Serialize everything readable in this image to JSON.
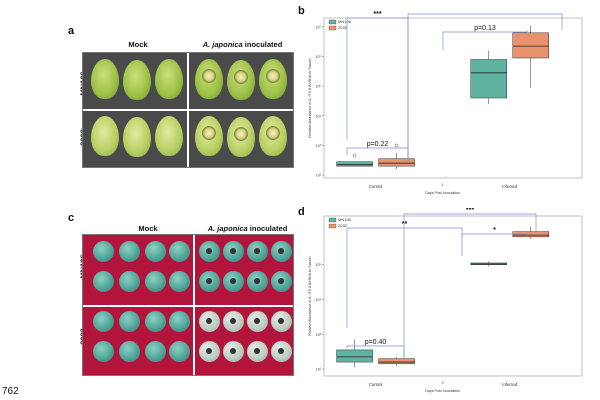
{
  "figure_id": "762",
  "panels": {
    "a": {
      "letter": "a",
      "col_mock": "Mock",
      "col_inoc_italic": "A. japonica",
      "col_inoc_rest": " inoculated",
      "row1": "MN106",
      "row2": "2032"
    },
    "c": {
      "letter": "c",
      "col_mock": "Mock",
      "col_inoc_italic": "A. japonica",
      "col_inoc_rest": " inoculated",
      "row1": "MN106",
      "row2": "2032"
    },
    "b": {
      "letter": "b"
    },
    "d": {
      "letter": "d"
    }
  },
  "chart_data": [
    {
      "panel": "b",
      "type": "box",
      "ylabel": "Relative Abundance of A. ITS 8 B/rRNA to Tubulin",
      "xlabel": "Days Post Inoculation",
      "categories": [
        "Control",
        "1",
        "Infected"
      ],
      "category_labels": [
        "Control",
        "Infected"
      ],
      "legend": [
        {
          "name": "MN106",
          "color": "#5fb3a0"
        },
        {
          "name": "2032",
          "color": "#e8926e"
        }
      ],
      "y_ticks": [
        "10⁷",
        "10⁶",
        "10⁵",
        "10⁴",
        "10³",
        "10²"
      ],
      "log_scale": true,
      "boxes": [
        {
          "group": "Control",
          "series": "MN106",
          "color": "#5fb3a0",
          "whisker_low": 2.3,
          "q1": 2.3,
          "median": 2.35,
          "q3": 2.45,
          "whisker_high": 2.45,
          "outliers": [
            2.65
          ]
        },
        {
          "group": "Control",
          "series": "2032",
          "color": "#e8926e",
          "whisker_low": 2.2,
          "q1": 2.3,
          "median": 2.4,
          "q3": 2.55,
          "whisker_high": 2.75,
          "outliers": [
            3.0
          ]
        },
        {
          "group": "Infected",
          "series": "MN106",
          "color": "#5fb3a0",
          "whisker_low": 4.4,
          "q1": 4.6,
          "median": 5.45,
          "q3": 5.9,
          "whisker_high": 6.2,
          "outliers": []
        },
        {
          "group": "Infected",
          "series": "2032",
          "color": "#e8926e",
          "whisker_low": 4.95,
          "q1": 5.95,
          "median": 6.35,
          "q3": 6.8,
          "whisker_high": 7.05,
          "outliers": []
        }
      ],
      "annotations": [
        "***",
        "***",
        "p=0.13",
        "p=0.22"
      ]
    },
    {
      "panel": "d",
      "type": "box",
      "ylabel": "Relative Abundance of A. ITS 8 B/rRNA to Tubulin",
      "xlabel": "Days Post Inoculation",
      "categories": [
        "Control",
        "2",
        "Infected"
      ],
      "category_labels": [
        "Control",
        "Infected"
      ],
      "legend": [
        {
          "name": "MN106",
          "color": "#5fb3a0"
        },
        {
          "name": "2032",
          "color": "#e8926e"
        }
      ],
      "y_ticks": [
        "10⁵",
        "10⁴",
        "10³",
        "10²"
      ],
      "log_scale": true,
      "boxes": [
        {
          "group": "Control",
          "series": "MN106",
          "color": "#5fb3a0",
          "whisker_low": 2.05,
          "q1": 2.2,
          "median": 2.35,
          "q3": 2.55,
          "whisker_high": 2.85,
          "outliers": []
        },
        {
          "group": "Control",
          "series": "2032",
          "color": "#e8926e",
          "whisker_low": 2.1,
          "q1": 2.15,
          "median": 2.2,
          "q3": 2.3,
          "whisker_high": 2.35,
          "outliers": []
        },
        {
          "group": "Infected",
          "series": "MN106",
          "color": "#5fb3a0",
          "whisker_low": 4.95,
          "q1": 5.0,
          "median": 5.02,
          "q3": 5.05,
          "whisker_high": 5.1,
          "outliers": []
        },
        {
          "group": "Infected",
          "series": "2032",
          "color": "#e8926e",
          "whisker_low": 5.75,
          "q1": 5.8,
          "median": 5.85,
          "q3": 5.95,
          "whisker_high": 6.1,
          "outliers": []
        }
      ],
      "annotations": [
        "**",
        "***",
        "*",
        "p=0.40"
      ]
    }
  ]
}
